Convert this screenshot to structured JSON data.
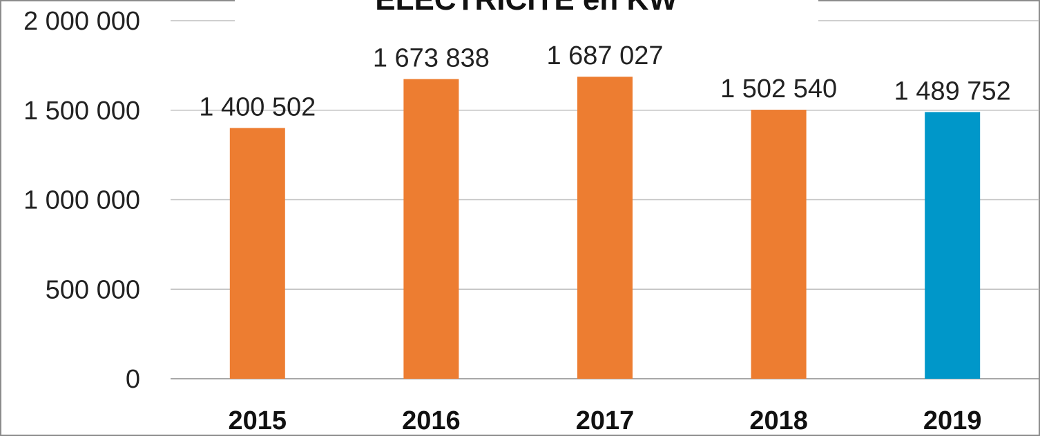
{
  "chart_data": {
    "type": "bar",
    "title": "ELECTRICITE en KW",
    "categories": [
      "2015",
      "2016",
      "2017",
      "2018",
      "2019"
    ],
    "values": [
      1400502,
      1673838,
      1687027,
      1502540,
      1489752
    ],
    "value_labels": [
      "1 400 502",
      "1 673 838",
      "1 687 027",
      "1 502 540",
      "1 489 752"
    ],
    "ylim": [
      0,
      2000000
    ],
    "yticks": [
      0,
      500000,
      1000000,
      1500000,
      2000000
    ],
    "ytick_labels": [
      "0",
      "500 000",
      "1 000 000",
      "1 500 000",
      "2 000 000"
    ],
    "xlabel": "",
    "ylabel": "",
    "grid": true,
    "legend": "none",
    "bar_colors": [
      "#ED7D31",
      "#ED7D31",
      "#ED7D31",
      "#ED7D31",
      "#0097C9"
    ],
    "grid_color": "#BFBFBF",
    "border_color": "#8C8C8C"
  }
}
